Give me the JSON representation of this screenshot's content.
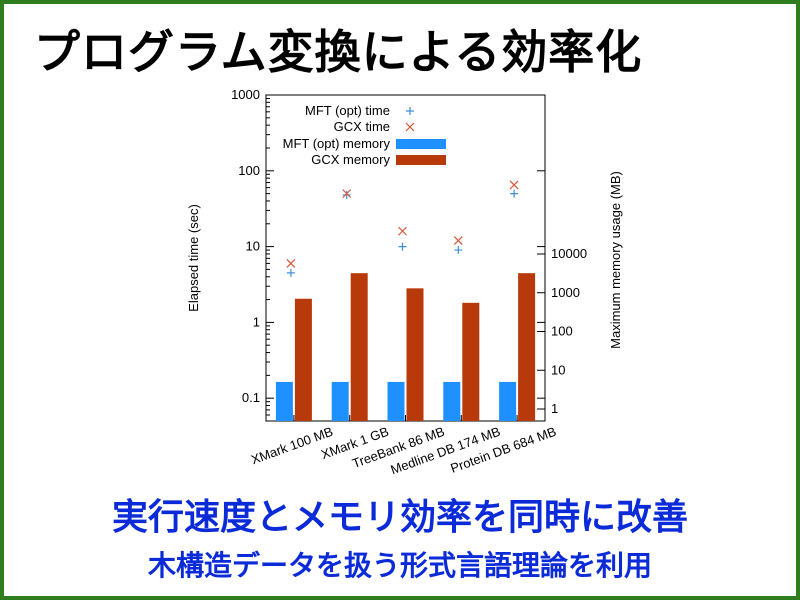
{
  "slide": {
    "title": "プログラム変換による効率化",
    "headline": "実行速度とメモリ効率を同時に改善",
    "subline": "木構造データを扱う形式言語理論を利用"
  },
  "colors": {
    "frame": "#2e7d1f",
    "text_blue": "#0b2ad8",
    "mft_memory": "#1e90ff",
    "gcx_memory": "#b83a0a",
    "mft_time": "#3a8fd9",
    "gcx_time": "#d8553a"
  },
  "chart_data": {
    "type": "bar",
    "categories": [
      "XMark 100 MB",
      "XMark 1 GB",
      "TreeBank 86 MB",
      "Medline DB 174 MB",
      "Protein DB 684 MB"
    ],
    "ylabel": "Elapsed time (sec)",
    "y2label": "Maximum memory usage (MB)",
    "yscale": "log",
    "ylim": [
      0.05,
      1000
    ],
    "yticks": [
      "0.1",
      "1",
      "10",
      "100",
      "1000"
    ],
    "y2scale": "log",
    "y2ticks": [
      "1",
      "10",
      "100",
      "1000",
      "10000"
    ],
    "legend_position": "top-right",
    "series": [
      {
        "name": "MFT (opt) time",
        "kind": "point",
        "marker": "+",
        "axis": "left",
        "values": [
          4.5,
          48,
          10,
          9,
          50
        ]
      },
      {
        "name": "GCX time",
        "kind": "point",
        "marker": "x",
        "axis": "left",
        "values": [
          6,
          50,
          16,
          12,
          65
        ]
      },
      {
        "name": "MFT (opt) memory",
        "kind": "bar",
        "axis": "right",
        "values": [
          5,
          5,
          5,
          5,
          5
        ]
      },
      {
        "name": "GCX memory",
        "kind": "bar",
        "axis": "right",
        "values": [
          700,
          3200,
          1300,
          550,
          3200
        ]
      }
    ]
  }
}
